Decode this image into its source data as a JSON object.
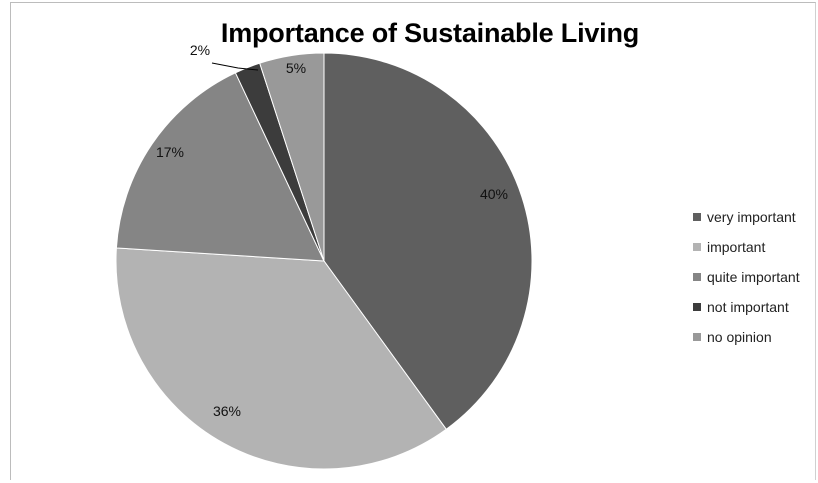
{
  "chart_data": {
    "type": "pie",
    "title": "Importance of Sustainable Living",
    "categories": [
      "very important",
      "important",
      "quite important",
      "not important",
      "no opinion"
    ],
    "values": [
      40,
      36,
      17,
      2,
      5
    ],
    "labels": [
      "40%",
      "36%",
      "17%",
      "2%",
      "5%"
    ],
    "colors": [
      "#5f5f5f",
      "#b3b3b3",
      "#858585",
      "#3c3c3c",
      "#999999"
    ],
    "legend_position": "right"
  }
}
